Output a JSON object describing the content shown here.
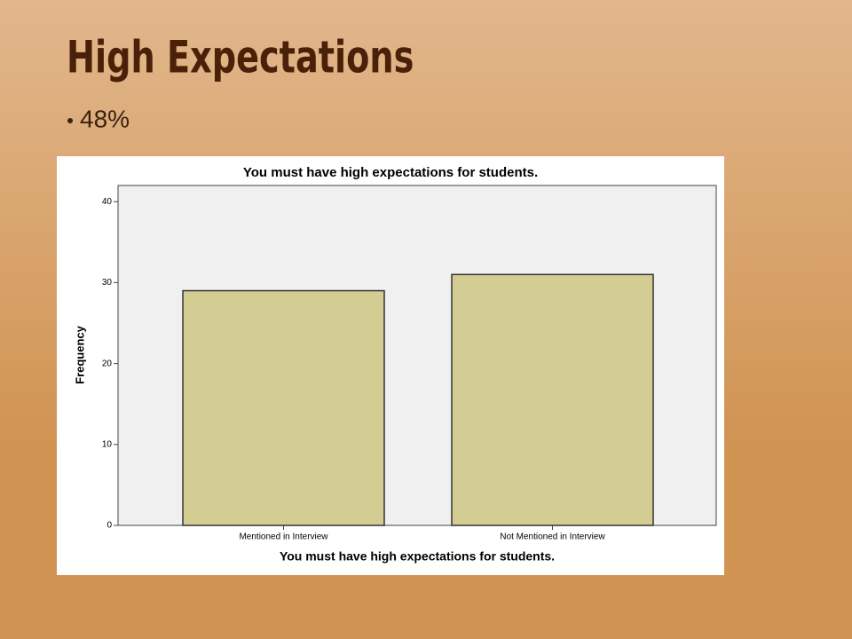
{
  "slide": {
    "title": "High Expectations",
    "bullets": [
      "48%"
    ]
  },
  "chart_data": {
    "type": "bar",
    "title": "You must have high expectations for students.",
    "x_label": "You must have high expectations for students.",
    "y_label": "Frequency",
    "categories": [
      "Mentioned in Interview",
      "Not Mentioned in Interview"
    ],
    "values": [
      29,
      31
    ],
    "color": "#d3cd94",
    "ylim": [
      0,
      42
    ],
    "yticks": [
      0,
      10,
      20,
      30,
      40
    ],
    "grid": false
  }
}
